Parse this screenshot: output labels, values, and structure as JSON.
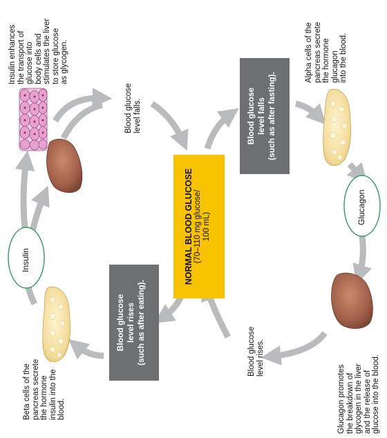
{
  "center": {
    "title": "NORMAL BLOOD GLUCOSE",
    "line1": "(70–110 mg glucose/",
    "line2": "100 mL)"
  },
  "box_falls": {
    "line1": "Blood glucose",
    "line2": "level falls",
    "line3": "(such as after fasting)."
  },
  "box_rises": {
    "line1": "Blood glucose",
    "line2": "level rises",
    "line3": "(such as after eating)."
  },
  "text_insulin_effect": [
    "Insulin enhances",
    "the transport of",
    "glucose into",
    "body cells and",
    "stimulates the liver",
    "to store glucose",
    "as glycogen."
  ],
  "text_level_falls": [
    "Blood glucose",
    "level falls."
  ],
  "text_alpha": [
    "Alpha cells of the",
    "pancreas secrete",
    "the hormone",
    "glucagon",
    "into the blood."
  ],
  "text_glucagon_effect": [
    "Glucagon promotes",
    "the breakdown of",
    "glycogen in the liver",
    "and the release of",
    "glucose into the blood."
  ],
  "text_level_rises": [
    "Blood glucose",
    "level rises."
  ],
  "text_beta": [
    "Beta cells of the",
    "pancreas secrete",
    "the hormone",
    "insulin into the",
    "blood."
  ],
  "label_insulin": "Insulin",
  "label_glucagon": "Glucagon",
  "colors": {
    "arrow": "#b9bbbd",
    "gray_box": "#6e6f71",
    "yellow_box": "#f7c200",
    "liver": "#a0604a",
    "pancreas": "#f3dc9a",
    "cells": "#e7a2cf",
    "oval_border": "#2f9a5c"
  }
}
